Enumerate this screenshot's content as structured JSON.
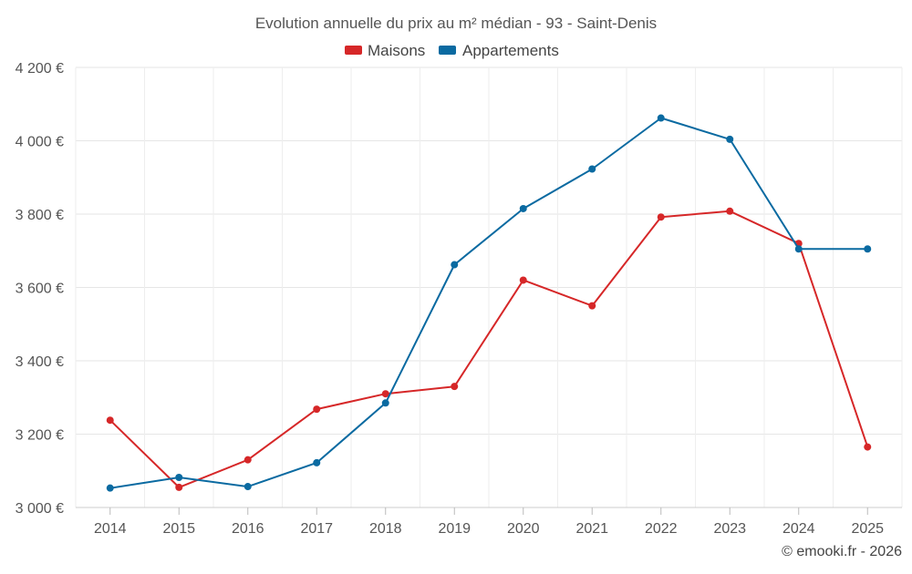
{
  "chart_data": {
    "type": "line",
    "title": "Evolution annuelle du prix au m² médian - 93 - Saint-Denis",
    "categories": [
      "2014",
      "2015",
      "2016",
      "2017",
      "2018",
      "2019",
      "2020",
      "2021",
      "2022",
      "2023",
      "2024",
      "2025"
    ],
    "series": [
      {
        "name": "Maisons",
        "color": "#d62728",
        "values": [
          3238,
          3055,
          3130,
          3268,
          3310,
          3330,
          3620,
          3550,
          3792,
          3808,
          3720,
          3165
        ]
      },
      {
        "name": "Appartements",
        "color": "#0a6aa1",
        "values": [
          3053,
          3082,
          3057,
          3122,
          3285,
          3662,
          3815,
          3923,
          4062,
          4004,
          3705,
          3705
        ]
      }
    ],
    "ylim": [
      3000,
      4200
    ],
    "yticks": [
      3000,
      3200,
      3400,
      3600,
      3800,
      4000,
      4200
    ],
    "ytick_labels": [
      "3 000 €",
      "3 200 €",
      "3 400 €",
      "3 600 €",
      "3 800 €",
      "4 000 €",
      "4 200 €"
    ],
    "grid": true,
    "legend_position": "top-center",
    "xlabel": "",
    "ylabel": ""
  },
  "credit": "© emooki.fr - 2026"
}
